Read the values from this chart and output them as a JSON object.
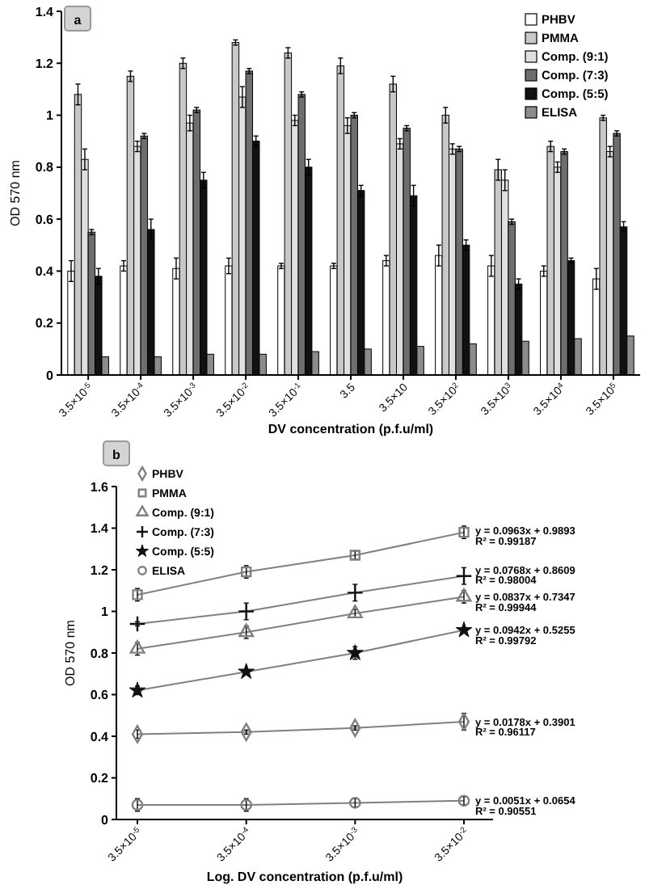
{
  "chart_data": [
    {
      "type": "bar",
      "title": "a",
      "xlabel": "DV concentration (p.f.u/ml)",
      "ylabel": "OD 570 nm",
      "categories": [
        "3.5×10$^{-5}$",
        "3.5×10$^{-4}$",
        "3.5×10$^{-3}$",
        "3.5×10$^{-2}$",
        "3.5×10$^{-1}$",
        "3.5",
        "3.5×10",
        "3.5×10$^{2}$",
        "3.5×10$^{3}$",
        "3.5×10$^{4}$",
        "3.5×10$^{5}$"
      ],
      "ylim": [
        0,
        1.4
      ],
      "yticks": [
        0,
        0.2,
        0.4,
        0.6,
        0.8,
        1,
        1.2,
        1.4
      ],
      "legend": "top right",
      "series": [
        {
          "name": "PHBV",
          "color": "#ffffff",
          "values": [
            0.4,
            0.42,
            0.41,
            0.42,
            0.42,
            0.42,
            0.44,
            0.46,
            0.42,
            0.4,
            0.37
          ],
          "errors": [
            0.04,
            0.02,
            0.04,
            0.03,
            0.01,
            0.01,
            0.02,
            0.04,
            0.04,
            0.02,
            0.04
          ]
        },
        {
          "name": "PMMA",
          "color": "#c8c8c8",
          "values": [
            1.08,
            1.15,
            1.2,
            1.28,
            1.24,
            1.19,
            1.12,
            1.0,
            0.79,
            0.88,
            0.99
          ],
          "errors": [
            0.04,
            0.02,
            0.02,
            0.01,
            0.02,
            0.03,
            0.03,
            0.03,
            0.04,
            0.02,
            0.01
          ]
        },
        {
          "name": "Comp. (9:1)",
          "color": "#e0e0e0",
          "values": [
            0.83,
            0.88,
            0.97,
            1.07,
            0.98,
            0.96,
            0.89,
            0.87,
            0.75,
            0.8,
            0.86
          ],
          "errors": [
            0.04,
            0.02,
            0.03,
            0.04,
            0.02,
            0.03,
            0.02,
            0.02,
            0.04,
            0.02,
            0.02
          ]
        },
        {
          "name": "Comp. (7:3)",
          "color": "#6e6e6e",
          "values": [
            0.55,
            0.92,
            1.02,
            1.17,
            1.08,
            1.0,
            0.95,
            0.87,
            0.59,
            0.86,
            0.93
          ],
          "errors": [
            0.01,
            0.01,
            0.01,
            0.01,
            0.01,
            0.01,
            0.01,
            0.01,
            0.01,
            0.01,
            0.01
          ]
        },
        {
          "name": "Comp. (5:5)",
          "color": "#111111",
          "values": [
            0.38,
            0.56,
            0.75,
            0.9,
            0.8,
            0.71,
            0.69,
            0.5,
            0.35,
            0.44,
            0.57
          ],
          "errors": [
            0.03,
            0.04,
            0.03,
            0.02,
            0.03,
            0.02,
            0.04,
            0.02,
            0.02,
            0.01,
            0.02
          ]
        },
        {
          "name": "ELISA",
          "color": "#8c8c8c",
          "values": [
            0.07,
            0.07,
            0.08,
            0.08,
            0.09,
            0.1,
            0.11,
            0.12,
            0.13,
            0.14,
            0.15
          ]
        }
      ]
    },
    {
      "type": "line",
      "title": "b",
      "xlabel": "Log. DV concentration (p.f.u/ml)",
      "ylabel": "OD 570 nm",
      "categories": [
        "3.5×10$^{-5}$",
        "3.5×10$^{-4}$",
        "3.5×10$^{-3}$",
        "3.5×10$^{-2}$"
      ],
      "ylim": [
        0,
        1.6
      ],
      "yticks": [
        0,
        0.2,
        0.4,
        0.6,
        0.8,
        1,
        1.2,
        1.4,
        1.6
      ],
      "legend": "top left",
      "series": [
        {
          "name": "PHBV",
          "color": "#808080",
          "marker": "diamond",
          "values": [
            0.41,
            0.42,
            0.44,
            0.47
          ],
          "errors": [
            0.02,
            0.01,
            0.01,
            0.04
          ]
        },
        {
          "name": "PMMA",
          "color": "#808080",
          "marker": "square",
          "values": [
            1.08,
            1.19,
            1.27,
            1.38
          ],
          "errors": [
            0.03,
            0.03,
            0.02,
            0.03
          ]
        },
        {
          "name": "Comp. (9:1)",
          "color": "#808080",
          "marker": "triangle",
          "values": [
            0.82,
            0.9,
            0.99,
            1.07
          ],
          "errors": [
            0.03,
            0.03,
            0.02,
            0.03
          ]
        },
        {
          "name": "Comp. (7:3)",
          "color": "#111111",
          "marker": "cross",
          "values": [
            0.94,
            1.0,
            1.09,
            1.17
          ],
          "errors": [
            0.01,
            0.04,
            0.04,
            0.04
          ]
        },
        {
          "name": "Comp. (5:5)",
          "color": "#111111",
          "marker": "star",
          "values": [
            0.62,
            0.71,
            0.8,
            0.91
          ],
          "errors": [
            0.02,
            0.01,
            0.03,
            0.01
          ]
        },
        {
          "name": "ELISA",
          "color": "#808080",
          "marker": "circle",
          "values": [
            0.07,
            0.07,
            0.08,
            0.09
          ],
          "errors": [
            0.03,
            0.03,
            0.02,
            0.02
          ]
        }
      ],
      "annotations": [
        {
          "text": "y = 0.0963x + 0.9893",
          "x": "3.5×10$^{-2}$",
          "y": 1.39
        },
        {
          "text": "R² = 0.99187",
          "x": "3.5×10$^{-2}$",
          "y": 1.34
        },
        {
          "text": "y = 0.0768x + 0.8609",
          "x": "3.5×10$^{-2}$",
          "y": 1.2
        },
        {
          "text": "R² = 0.98004",
          "x": "3.5×10$^{-2}$",
          "y": 1.15
        },
        {
          "text": "y = 0.0837x + 0.7347",
          "x": "3.5×10$^{-2}$",
          "y": 1.07
        },
        {
          "text": "R² = 0.99944",
          "x": "3.5×10$^{-2}$",
          "y": 1.02
        },
        {
          "text": "y = 0.0942x + 0.5255",
          "x": "3.5×10$^{-2}$",
          "y": 0.91
        },
        {
          "text": "R² = 0.99792",
          "x": "3.5×10$^{-2}$",
          "y": 0.86
        },
        {
          "text": "y = 0.0178x + 0.3901",
          "x": "3.5×10$^{-2}$",
          "y": 0.47
        },
        {
          "text": "R² = 0.96117",
          "x": "3.5×10$^{-2}$",
          "y": 0.42
        },
        {
          "text": "y = 0.0051x + 0.0654",
          "x": "3.5×10$^{-2}$",
          "y": 0.09
        },
        {
          "text": "R² = 0.90551",
          "x": "3.5×10$^{-2}$",
          "y": 0.04
        }
      ]
    }
  ]
}
